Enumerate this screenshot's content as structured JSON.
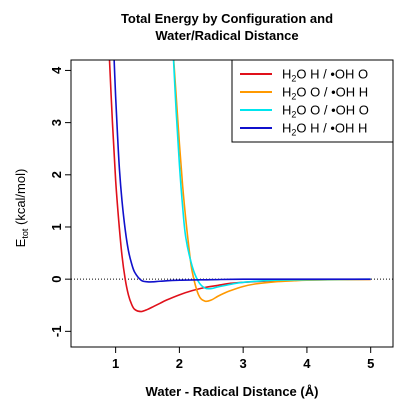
{
  "chart_data": {
    "type": "line",
    "title_lines": [
      "Total Energy by Configuration and",
      "Water/Radical Distance"
    ],
    "xlabel": "Water - Radical Distance (Å)",
    "ylabel": {
      "main": "E",
      "sub": "tot",
      "rest": " (kcal/mol)"
    },
    "xlim": [
      0.3,
      5.35
    ],
    "ylim": [
      -1.3,
      4.2
    ],
    "x_ticks": [
      1,
      2,
      3,
      4,
      5
    ],
    "y_ticks": [
      -1,
      0,
      1,
      2,
      3,
      4
    ],
    "reference_line": {
      "y": 0,
      "style": "dotted"
    },
    "legend_position": "top-right",
    "series": [
      {
        "name": "H₂O H / •OH O",
        "legend": {
          "a": "H",
          "sub": "2",
          "b": "O H / •OH O"
        },
        "color": "#e0101a",
        "x": [
          0.9,
          0.95,
          1.0,
          1.05,
          1.1,
          1.15,
          1.2,
          1.25,
          1.3,
          1.4,
          1.5,
          1.6,
          1.7,
          1.8,
          2.0,
          2.2,
          2.4,
          2.6,
          2.8,
          3.0,
          3.3,
          3.6,
          4.0,
          4.5,
          5.0
        ],
        "y": [
          4.3,
          3.0,
          1.9,
          1.1,
          0.45,
          0.0,
          -0.3,
          -0.48,
          -0.58,
          -0.62,
          -0.58,
          -0.52,
          -0.46,
          -0.4,
          -0.3,
          -0.22,
          -0.16,
          -0.12,
          -0.08,
          -0.06,
          -0.04,
          -0.025,
          -0.015,
          -0.008,
          -0.004
        ]
      },
      {
        "name": "H₂O O / •OH H",
        "legend": {
          "a": "H",
          "sub": "2",
          "b": "O O / •OH H"
        },
        "color": "#ff9900",
        "x": [
          1.9,
          1.95,
          2.0,
          2.05,
          2.1,
          2.15,
          2.2,
          2.3,
          2.4,
          2.5,
          2.6,
          2.7,
          2.8,
          3.0,
          3.2,
          3.5,
          3.8,
          4.0,
          4.5,
          5.0
        ],
        "y": [
          4.4,
          3.5,
          2.6,
          1.8,
          1.15,
          0.6,
          0.15,
          -0.3,
          -0.42,
          -0.4,
          -0.33,
          -0.27,
          -0.22,
          -0.14,
          -0.09,
          -0.05,
          -0.03,
          -0.02,
          -0.01,
          -0.005
        ]
      },
      {
        "name": "H₂O O / •OH O",
        "legend": {
          "a": "H",
          "sub": "2",
          "b": "O O / •OH O"
        },
        "color": "#00e5ee",
        "x": [
          1.9,
          1.95,
          2.0,
          2.05,
          2.1,
          2.2,
          2.3,
          2.4,
          2.5,
          2.6,
          2.8,
          3.0,
          3.5,
          4.0,
          5.0
        ],
        "y": [
          4.4,
          3.2,
          2.2,
          1.4,
          0.8,
          0.25,
          -0.05,
          -0.17,
          -0.18,
          -0.15,
          -0.1,
          -0.06,
          -0.02,
          -0.01,
          0.0
        ]
      },
      {
        "name": "H₂O H / •OH H",
        "legend": {
          "a": "H",
          "sub": "2",
          "b": "O H / •OH H"
        },
        "color": "#1010cc",
        "x": [
          0.97,
          1.0,
          1.03,
          1.06,
          1.1,
          1.15,
          1.2,
          1.25,
          1.3,
          1.4,
          1.5,
          1.6,
          1.7,
          2.0,
          2.5,
          3.0,
          4.0,
          5.0
        ],
        "y": [
          4.4,
          3.5,
          2.75,
          2.1,
          1.5,
          0.95,
          0.55,
          0.3,
          0.13,
          -0.02,
          -0.05,
          -0.05,
          -0.04,
          -0.02,
          -0.01,
          0.0,
          0.0,
          0.0
        ]
      }
    ]
  }
}
